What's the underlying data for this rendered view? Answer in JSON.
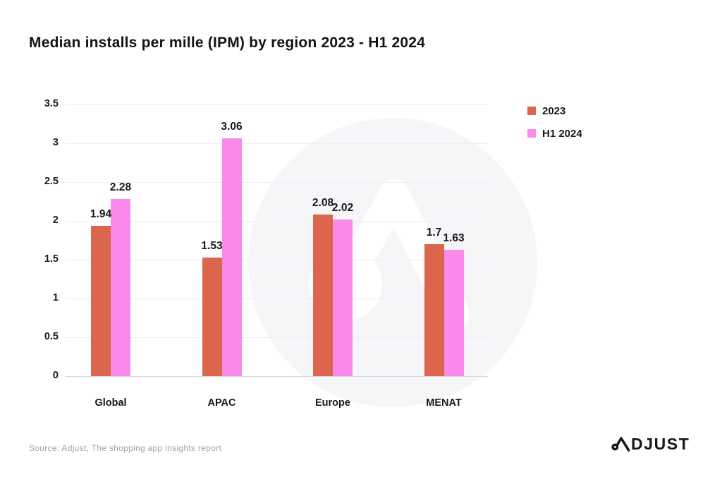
{
  "title": "Median installs per mille (IPM) by region 2023 - H1 2024",
  "source": "Source: Adjust, The shopping app insights report",
  "brand": {
    "logo_text": "ADJUST",
    "logo_display_rest": "DJUST"
  },
  "colors": {
    "series_2023": "#DC654D",
    "series_h1_2024": "#F98AE9",
    "gridline": "#EDEDF3",
    "axis_line": "#D8D8DE",
    "text": "#17171B",
    "source_text": "#9FA0A6",
    "watermark_circle": "#F6F6F9"
  },
  "legend": {
    "position": "top-right",
    "items": [
      "2023",
      "H1 2024"
    ]
  },
  "chart_data": {
    "type": "bar",
    "title": "Median installs per mille (IPM) by region 2023 - H1 2024",
    "categories": [
      "Global",
      "APAC",
      "Europe",
      "MENAT"
    ],
    "series": [
      {
        "name": "2023",
        "color": "#DC654D",
        "values": [
          1.94,
          1.53,
          2.08,
          1.7
        ],
        "labels": [
          "1.94",
          "1.53",
          "2.08",
          "1.7"
        ]
      },
      {
        "name": "H1 2024",
        "color": "#F98AE9",
        "values": [
          2.28,
          3.06,
          2.02,
          1.63
        ],
        "labels": [
          "2.28",
          "3.06",
          "2.02",
          "1.63"
        ]
      }
    ],
    "xlabel": "",
    "ylabel": "",
    "ylim": [
      0,
      3.5
    ],
    "ytick_step": 0.5,
    "yticks": [
      "3.5",
      "3",
      "2.5",
      "2",
      "1.5",
      "1",
      "0.5",
      "0"
    ],
    "grid": true,
    "legend_position": "top-right",
    "value_labels_shown": true
  }
}
